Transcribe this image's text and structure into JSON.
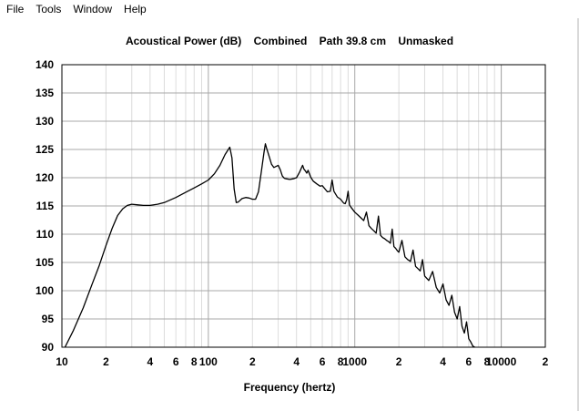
{
  "menu": {
    "items": [
      "File",
      "Tools",
      "Window",
      "Help"
    ]
  },
  "chart_data": {
    "type": "line",
    "title": "Acoustical Power (dB)    Combined    Path 39.8 cm    Unmasked",
    "xlabel": "Frequency (hertz)",
    "ylabel": "",
    "x_scale": "log",
    "xlim": [
      10,
      20000
    ],
    "ylim": [
      90,
      140
    ],
    "yticks": [
      90,
      95,
      100,
      105,
      110,
      115,
      120,
      125,
      130,
      135,
      140
    ],
    "yticklabels": [
      "90",
      "95",
      "100",
      "105",
      "110",
      "115",
      "120",
      "125",
      "130",
      "135",
      "140"
    ],
    "xticks": [
      10,
      20,
      40,
      60,
      80,
      100,
      200,
      400,
      600,
      800,
      1000,
      2000,
      4000,
      6000,
      8000,
      10000,
      20000
    ],
    "xticklabels": [
      "10",
      "2",
      "4",
      "6",
      "8",
      "100",
      "2",
      "4",
      "6",
      "8",
      "1000",
      "2",
      "4",
      "6",
      "8",
      "10000",
      "2"
    ],
    "grid": true,
    "line_color": "#000000",
    "series": [
      {
        "x": [
          10.5,
          12,
          14,
          16,
          18,
          20,
          22,
          24,
          26,
          28,
          30,
          33,
          36,
          40,
          45,
          50,
          60,
          70,
          80,
          90,
          100,
          110,
          120,
          130,
          140,
          145,
          150,
          155,
          160,
          170,
          180,
          190,
          200,
          210,
          220,
          230,
          240,
          245,
          250,
          260,
          270,
          280,
          300,
          310,
          320,
          330,
          340,
          360,
          380,
          400,
          420,
          440,
          450,
          460,
          470,
          480,
          500,
          520,
          550,
          580,
          600,
          650,
          680,
          700,
          720,
          760,
          800,
          840,
          860,
          880,
          900,
          920,
          940,
          1000,
          1050,
          1100,
          1150,
          1200,
          1250,
          1300,
          1350,
          1400,
          1450,
          1500,
          1550,
          1600,
          1650,
          1700,
          1750,
          1800,
          1850,
          1900,
          1950,
          2000,
          2100,
          2200,
          2300,
          2400,
          2500,
          2600,
          2700,
          2800,
          2900,
          3000,
          3200,
          3400,
          3600,
          3800,
          4000,
          4200,
          4400,
          4600,
          4800,
          5000,
          5200,
          5400,
          5600,
          5800,
          6000,
          6200,
          6400,
          6600
        ],
        "y": [
          90,
          93,
          97,
          101,
          104.5,
          108,
          111,
          113.3,
          114.5,
          115.1,
          115.3,
          115.2,
          115.1,
          115.1,
          115.3,
          115.6,
          116.5,
          117.4,
          118.2,
          118.9,
          119.6,
          120.7,
          122.2,
          124.1,
          125.4,
          123.5,
          118,
          115.6,
          115.7,
          116.3,
          116.5,
          116.4,
          116.2,
          116.2,
          117.5,
          121,
          124.5,
          126,
          125.2,
          123.8,
          122.4,
          121.8,
          122.2,
          121.4,
          120.3,
          119.9,
          119.8,
          119.7,
          119.8,
          120,
          121,
          122.2,
          121.5,
          121.2,
          120.8,
          121.3,
          120.1,
          119.4,
          118.9,
          118.5,
          118.6,
          117.5,
          117.6,
          119.6,
          117.6,
          116.6,
          116.2,
          115.5,
          115.4,
          116.1,
          117.6,
          115.2,
          114.8,
          113.9,
          113.4,
          112.9,
          112.4,
          113.9,
          111.5,
          111,
          110.6,
          110.2,
          113.2,
          109.8,
          109.4,
          109.2,
          108.9,
          108.7,
          108.4,
          110.9,
          107.8,
          107.5,
          107.1,
          106.8,
          108.9,
          106,
          105.5,
          105.2,
          107.2,
          104.3,
          103.9,
          103.5,
          105.5,
          102.6,
          101.8,
          103.4,
          100.6,
          99.6,
          101.2,
          98.4,
          97.4,
          99.2,
          96.2,
          95,
          97.2,
          93.7,
          92.5,
          94.5,
          91.5,
          90.9,
          90.2,
          90
        ]
      }
    ]
  }
}
